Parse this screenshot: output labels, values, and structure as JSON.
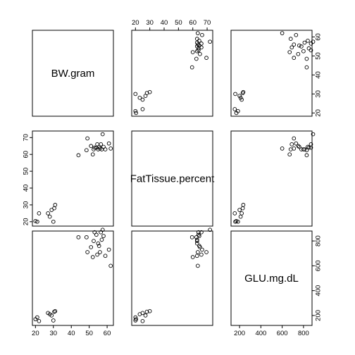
{
  "chart_data": {
    "type": "scatter",
    "subtype": "scatterplot-matrix",
    "variables": [
      "BW.gram",
      "FatTissue.percent",
      "GLU.mg.dL"
    ],
    "axis_ticks": {
      "BW.gram": [
        20,
        30,
        40,
        50,
        60
      ],
      "FatTissue.percent": [
        20,
        30,
        40,
        50,
        60,
        70
      ],
      "GLU.mg.dL": [
        200,
        400,
        600,
        800
      ]
    },
    "axis_ranges": {
      "BW.gram": [
        18.3,
        63.5
      ],
      "FatTissue.percent": [
        17.4,
        73.9
      ],
      "GLU.mg.dL": [
        120,
        880
      ]
    },
    "points": [
      {
        "BW": 20,
        "Fat": 20.4,
        "GLU": 170
      },
      {
        "BW": 21,
        "Fat": 20.0,
        "GLU": 185
      },
      {
        "BW": 22,
        "Fat": 25.0,
        "GLU": 155
      },
      {
        "BW": 27,
        "Fat": 25.0,
        "GLU": 220
      },
      {
        "BW": 28,
        "Fat": 23.0,
        "GLU": 210
      },
      {
        "BW": 29,
        "Fat": 27.0,
        "GLU": 200
      },
      {
        "BW": 30,
        "Fat": 20.0,
        "GLU": 160
      },
      {
        "BW": 30.5,
        "Fat": 28.0,
        "GLU": 230
      },
      {
        "BW": 31,
        "Fat": 30.0,
        "GLU": 235
      },
      {
        "BW": 44,
        "Fat": 59.5,
        "GLU": 830
      },
      {
        "BW": 48.5,
        "Fat": 62.5,
        "GLU": 830
      },
      {
        "BW": 49,
        "Fat": 69.5,
        "GLU": 710
      },
      {
        "BW": 51,
        "Fat": 65.0,
        "GLU": 750
      },
      {
        "BW": 52,
        "Fat": 60.0,
        "GLU": 670
      },
      {
        "BW": 52.5,
        "Fat": 63.0,
        "GLU": 800
      },
      {
        "BW": 53,
        "Fat": 64.0,
        "GLU": 870
      },
      {
        "BW": 54,
        "Fat": 64.0,
        "GLU": 850
      },
      {
        "BW": 54.5,
        "Fat": 66.0,
        "GLU": 690
      },
      {
        "BW": 55,
        "Fat": 63.0,
        "GLU": 780
      },
      {
        "BW": 55.5,
        "Fat": 64.5,
        "GLU": 760
      },
      {
        "BW": 56,
        "Fat": 63.5,
        "GLU": 710
      },
      {
        "BW": 56.5,
        "Fat": 66.0,
        "GLU": 870
      },
      {
        "BW": 57,
        "Fat": 63.0,
        "GLU": 810
      },
      {
        "BW": 57.5,
        "Fat": 72.0,
        "GLU": 890
      },
      {
        "BW": 58,
        "Fat": 64.5,
        "GLU": 840
      },
      {
        "BW": 59,
        "Fat": 63.0,
        "GLU": 680
      },
      {
        "BW": 61,
        "Fat": 66.5,
        "GLU": 730
      },
      {
        "BW": 62,
        "Fat": 63.5,
        "GLU": 600
      }
    ]
  }
}
